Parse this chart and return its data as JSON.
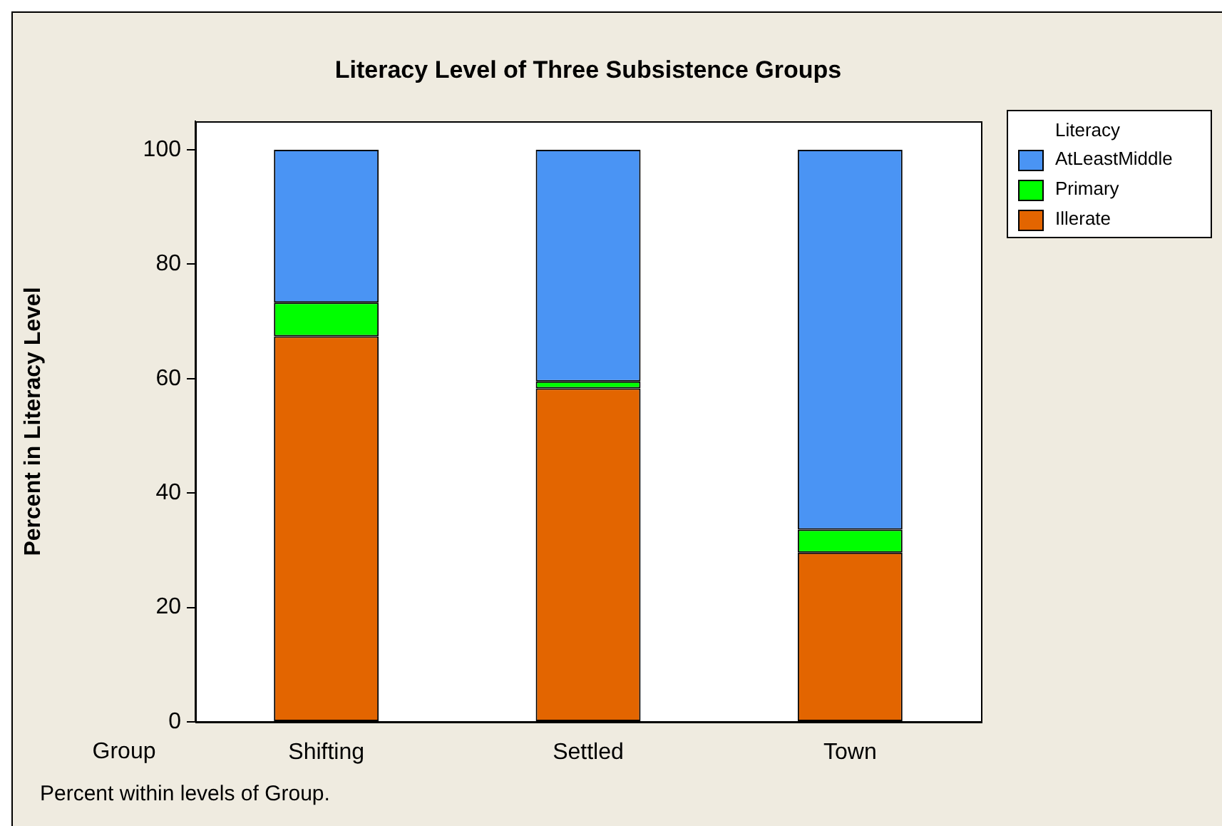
{
  "chart_data": {
    "type": "bar",
    "title": "Literacy Level of Three Subsistence Groups",
    "xlabel": "Group",
    "ylabel": "Percent in Literacy Level",
    "legend_title": "Literacy",
    "categories": [
      "Shifting",
      "Settled",
      "Town"
    ],
    "stacked": true,
    "series": [
      {
        "name": "Illerate",
        "color": "#e36500",
        "values": [
          67.4,
          58.3,
          29.6
        ]
      },
      {
        "name": "Primary",
        "color": "#00ff00",
        "values": [
          5.9,
          1.2,
          4.0
        ]
      },
      {
        "name": "AtLeastMiddle",
        "color": "#4a94f4",
        "values": [
          26.7,
          40.5,
          66.4
        ]
      }
    ],
    "ylim": [
      0,
      105
    ],
    "yticks": [
      0,
      20,
      40,
      60,
      80,
      100
    ],
    "grid": false,
    "legend": "top right",
    "annotations": [
      "Percent within levels of Group."
    ]
  }
}
